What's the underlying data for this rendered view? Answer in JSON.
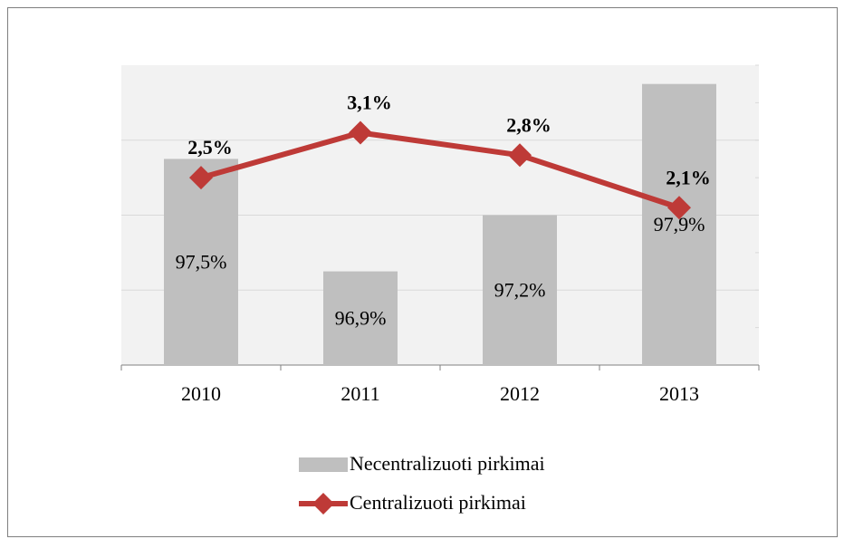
{
  "chart_data": {
    "type": "bar_line",
    "categories": [
      "2010",
      "2011",
      "2012",
      "2013"
    ],
    "series": [
      {
        "name": "Necentralizuoti pirkimai",
        "type": "bar",
        "color": "#bfbfbf",
        "values": [
          97.5,
          96.9,
          97.2,
          97.9
        ],
        "value_labels": [
          "97,5%",
          "96,9%",
          "97,2%",
          "97,9%"
        ]
      },
      {
        "name": "Centralizuoti pirkimai",
        "type": "line",
        "axis": "y2",
        "color": "#be3a37",
        "values": [
          2.5,
          3.1,
          2.8,
          2.1
        ],
        "value_labels": [
          "2,5%",
          "3,1%",
          "2,8%",
          "2,1%"
        ]
      }
    ],
    "ylim": [
      96.4,
      98.0
    ],
    "yticks": [
      96.4,
      96.8,
      97.2,
      97.6,
      98.0
    ],
    "y2lim": [
      0,
      4
    ],
    "y2ticks": [
      0,
      0.5,
      1,
      1.5,
      2,
      2.5,
      3,
      3.5,
      4
    ],
    "grid": true
  }
}
